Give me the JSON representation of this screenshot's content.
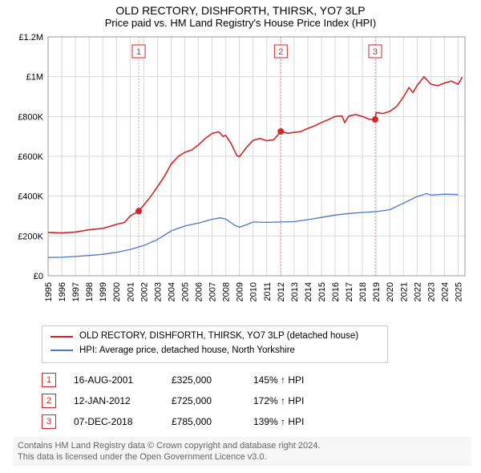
{
  "header": {
    "title": "OLD RECTORY, DISHFORTH, THIRSK, YO7 3LP",
    "subtitle": "Price paid vs. HM Land Registry's House Price Index (HPI)"
  },
  "chart": {
    "type": "line",
    "background_color": "#ffffff",
    "grid_color": "#d9d9d9",
    "axis_color": "#9a9a9a",
    "tick_fontsize": 11,
    "tick_color": "#000000",
    "xlim": [
      1995,
      2025.5
    ],
    "ylim": [
      0,
      1200000
    ],
    "ytick_step": 200000,
    "yticks": [
      {
        "v": 0,
        "label": "£0"
      },
      {
        "v": 200000,
        "label": "£200K"
      },
      {
        "v": 400000,
        "label": "£400K"
      },
      {
        "v": 600000,
        "label": "£600K"
      },
      {
        "v": 800000,
        "label": "£800K"
      },
      {
        "v": 1000000,
        "label": "£1M"
      },
      {
        "v": 1200000,
        "label": "£1.2M"
      }
    ],
    "xticks": [
      1995,
      1996,
      1997,
      1998,
      1999,
      2000,
      2001,
      2002,
      2003,
      2004,
      2005,
      2006,
      2007,
      2008,
      2009,
      2010,
      2011,
      2012,
      2013,
      2014,
      2015,
      2016,
      2017,
      2018,
      2019,
      2020,
      2021,
      2022,
      2023,
      2024,
      2025
    ],
    "series_price": {
      "color": "#d22626",
      "line_width": 1.6,
      "label": "OLD RECTORY, DISHFORTH, THIRSK, YO7 3LP (detached house)",
      "data": [
        [
          1995.0,
          218000
        ],
        [
          1996.0,
          215000
        ],
        [
          1997.0,
          220000
        ],
        [
          1998.0,
          231000
        ],
        [
          1999.0,
          238000
        ],
        [
          2000.0,
          258000
        ],
        [
          2000.6,
          268000
        ],
        [
          2001.0,
          300000
        ],
        [
          2001.63,
          325000
        ],
        [
          2002.0,
          355000
        ],
        [
          2002.5,
          398000
        ],
        [
          2003.0,
          447000
        ],
        [
          2003.5,
          498000
        ],
        [
          2004.0,
          560000
        ],
        [
          2004.5,
          598000
        ],
        [
          2005.0,
          620000
        ],
        [
          2005.5,
          632000
        ],
        [
          2006.0,
          657000
        ],
        [
          2006.5,
          690000
        ],
        [
          2007.0,
          715000
        ],
        [
          2007.5,
          723000
        ],
        [
          2007.8,
          700000
        ],
        [
          2008.0,
          705000
        ],
        [
          2008.4,
          663000
        ],
        [
          2008.8,
          605000
        ],
        [
          2009.0,
          598000
        ],
        [
          2009.5,
          643000
        ],
        [
          2010.0,
          680000
        ],
        [
          2010.5,
          690000
        ],
        [
          2011.0,
          678000
        ],
        [
          2011.5,
          683000
        ],
        [
          2012.03,
          725000
        ],
        [
          2012.5,
          716000
        ],
        [
          2013.0,
          720000
        ],
        [
          2013.5,
          725000
        ],
        [
          2014.0,
          740000
        ],
        [
          2014.5,
          753000
        ],
        [
          2015.0,
          770000
        ],
        [
          2015.5,
          784000
        ],
        [
          2016.0,
          800000
        ],
        [
          2016.5,
          803000
        ],
        [
          2016.7,
          770000
        ],
        [
          2017.0,
          802000
        ],
        [
          2017.5,
          810000
        ],
        [
          2018.0,
          800000
        ],
        [
          2018.5,
          786000
        ],
        [
          2018.93,
          785000
        ],
        [
          2019.0,
          820000
        ],
        [
          2019.5,
          815000
        ],
        [
          2020.0,
          826000
        ],
        [
          2020.5,
          850000
        ],
        [
          2021.0,
          898000
        ],
        [
          2021.4,
          945000
        ],
        [
          2021.7,
          920000
        ],
        [
          2022.0,
          956000
        ],
        [
          2022.5,
          1000000
        ],
        [
          2022.8,
          978000
        ],
        [
          2023.0,
          962000
        ],
        [
          2023.5,
          955000
        ],
        [
          2024.0,
          968000
        ],
        [
          2024.5,
          978000
        ],
        [
          2025.0,
          962000
        ],
        [
          2025.3,
          998000
        ]
      ]
    },
    "series_hpi": {
      "color": "#4a77c4",
      "line_width": 1.3,
      "label": "HPI: Average price, detached house, North Yorkshire",
      "data": [
        [
          1995.0,
          92000
        ],
        [
          1996.0,
          93000
        ],
        [
          1997.0,
          97000
        ],
        [
          1998.0,
          102000
        ],
        [
          1999.0,
          108000
        ],
        [
          2000.0,
          118000
        ],
        [
          2001.0,
          132000
        ],
        [
          2002.0,
          152000
        ],
        [
          2003.0,
          182000
        ],
        [
          2004.0,
          225000
        ],
        [
          2005.0,
          250000
        ],
        [
          2006.0,
          265000
        ],
        [
          2007.0,
          284000
        ],
        [
          2007.6,
          291000
        ],
        [
          2008.0,
          285000
        ],
        [
          2008.7,
          252000
        ],
        [
          2009.0,
          244000
        ],
        [
          2009.6,
          258000
        ],
        [
          2010.0,
          270000
        ],
        [
          2011.0,
          268000
        ],
        [
          2012.0,
          270000
        ],
        [
          2013.0,
          272000
        ],
        [
          2014.0,
          282000
        ],
        [
          2015.0,
          293000
        ],
        [
          2016.0,
          305000
        ],
        [
          2017.0,
          313000
        ],
        [
          2018.0,
          318000
        ],
        [
          2019.0,
          322000
        ],
        [
          2020.0,
          332000
        ],
        [
          2021.0,
          365000
        ],
        [
          2022.0,
          398000
        ],
        [
          2022.7,
          413000
        ],
        [
          2023.0,
          405000
        ],
        [
          2024.0,
          410000
        ],
        [
          2025.0,
          408000
        ]
      ]
    },
    "sale_markers": [
      {
        "n": "1",
        "x": 2001.63,
        "y": 325000
      },
      {
        "n": "2",
        "x": 2012.03,
        "y": 725000
      },
      {
        "n": "3",
        "x": 2018.93,
        "y": 785000
      }
    ],
    "marker_line_color": "#e59aa0",
    "marker_dot_color": "#d22626",
    "marker_box_border": "#d22626",
    "marker_box_text_color": "#d22626"
  },
  "legend": {
    "rows": [
      {
        "color": "#d22626",
        "label_key": "chart.series_price.label"
      },
      {
        "color": "#4a77c4",
        "label_key": "chart.series_hpi.label"
      }
    ]
  },
  "sales": [
    {
      "n": "1",
      "date": "16-AUG-2001",
      "price": "£325,000",
      "hpi": "145% ↑ HPI"
    },
    {
      "n": "2",
      "date": "12-JAN-2012",
      "price": "£725,000",
      "hpi": "172% ↑ HPI"
    },
    {
      "n": "3",
      "date": "07-DEC-2018",
      "price": "£785,000",
      "hpi": "139% ↑ HPI"
    }
  ],
  "footer": {
    "line1": "Contains HM Land Registry data © Crown copyright and database right 2024.",
    "line2": "This data is licensed under the Open Government Licence v3.0."
  }
}
